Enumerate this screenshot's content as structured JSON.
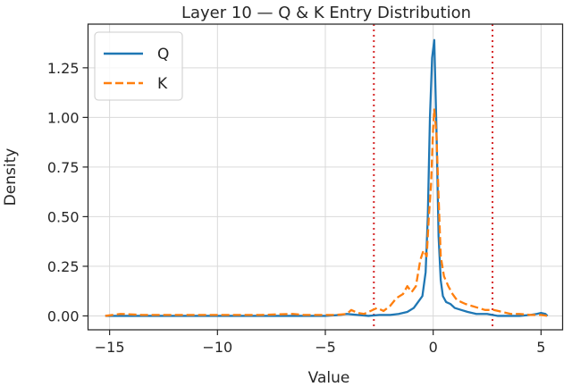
{
  "chart_data": {
    "type": "line",
    "title": "Layer 10 — Q & K Entry Distribution",
    "xlabel": "Value",
    "ylabel": "Density",
    "xlim": [
      -16.0,
      6.0
    ],
    "ylim": [
      -0.07,
      1.47
    ],
    "xticks": [
      -15,
      -10,
      -5,
      0,
      5
    ],
    "xtick_labels": [
      "−15",
      "−10",
      "−5",
      "0",
      "5"
    ],
    "yticks": [
      0.0,
      0.25,
      0.5,
      0.75,
      1.0,
      1.25
    ],
    "ytick_labels": [
      "0.00",
      "0.25",
      "0.50",
      "0.75",
      "1.00",
      "1.25"
    ],
    "grid": true,
    "legend_position": "top-left",
    "series": [
      {
        "name": "Q",
        "color": "#1f77b4",
        "style": "solid",
        "x": [
          -15.2,
          -14.0,
          -12.0,
          -10.0,
          -8.0,
          -6.0,
          -5.0,
          -4.3,
          -4.0,
          -3.5,
          -3.0,
          -2.5,
          -2.0,
          -1.6,
          -1.2,
          -0.9,
          -0.7,
          -0.5,
          -0.35,
          -0.25,
          -0.15,
          -0.05,
          0.05,
          0.15,
          0.25,
          0.35,
          0.45,
          0.6,
          0.8,
          1.0,
          1.3,
          1.6,
          2.0,
          2.5,
          3.0,
          3.5,
          4.0,
          4.5,
          4.8,
          5.0,
          5.2,
          5.3
        ],
        "y": [
          0.0,
          0.0,
          0.0,
          0.0,
          0.0,
          0.0,
          0.0,
          0.005,
          0.01,
          0.005,
          0.0,
          0.005,
          0.005,
          0.01,
          0.02,
          0.04,
          0.07,
          0.1,
          0.22,
          0.5,
          1.0,
          1.3,
          1.39,
          0.95,
          0.4,
          0.18,
          0.1,
          0.07,
          0.06,
          0.04,
          0.03,
          0.02,
          0.01,
          0.01,
          0.0,
          0.0,
          0.0,
          0.005,
          0.01,
          0.015,
          0.01,
          0.0
        ]
      },
      {
        "name": "K",
        "color": "#ff7f0e",
        "style": "dashed",
        "x": [
          -15.2,
          -14.5,
          -13.5,
          -12.0,
          -10.0,
          -8.0,
          -6.5,
          -6.0,
          -5.0,
          -4.5,
          -4.0,
          -3.8,
          -3.5,
          -3.2,
          -3.0,
          -2.6,
          -2.3,
          -2.0,
          -1.7,
          -1.4,
          -1.2,
          -1.0,
          -0.8,
          -0.6,
          -0.45,
          -0.3,
          -0.2,
          -0.1,
          0.0,
          0.05,
          0.15,
          0.25,
          0.35,
          0.5,
          0.7,
          0.9,
          1.1,
          1.3,
          1.5,
          1.8,
          2.1,
          2.4,
          2.8,
          3.2,
          3.6,
          4.0,
          4.5,
          5.0,
          5.3
        ],
        "y": [
          0.0,
          0.01,
          0.005,
          0.005,
          0.005,
          0.005,
          0.01,
          0.005,
          0.005,
          0.005,
          0.01,
          0.03,
          0.015,
          0.01,
          0.02,
          0.04,
          0.025,
          0.05,
          0.09,
          0.11,
          0.15,
          0.12,
          0.15,
          0.28,
          0.33,
          0.3,
          0.5,
          0.66,
          0.95,
          1.04,
          0.92,
          0.6,
          0.3,
          0.2,
          0.15,
          0.11,
          0.08,
          0.07,
          0.06,
          0.05,
          0.04,
          0.03,
          0.03,
          0.02,
          0.01,
          0.01,
          0.005,
          0.005,
          0.0
        ]
      }
    ],
    "vlines": [
      {
        "x": -2.75,
        "color": "#d62728",
        "style": "dotted"
      },
      {
        "x": 2.75,
        "color": "#d62728",
        "style": "dotted"
      }
    ]
  }
}
